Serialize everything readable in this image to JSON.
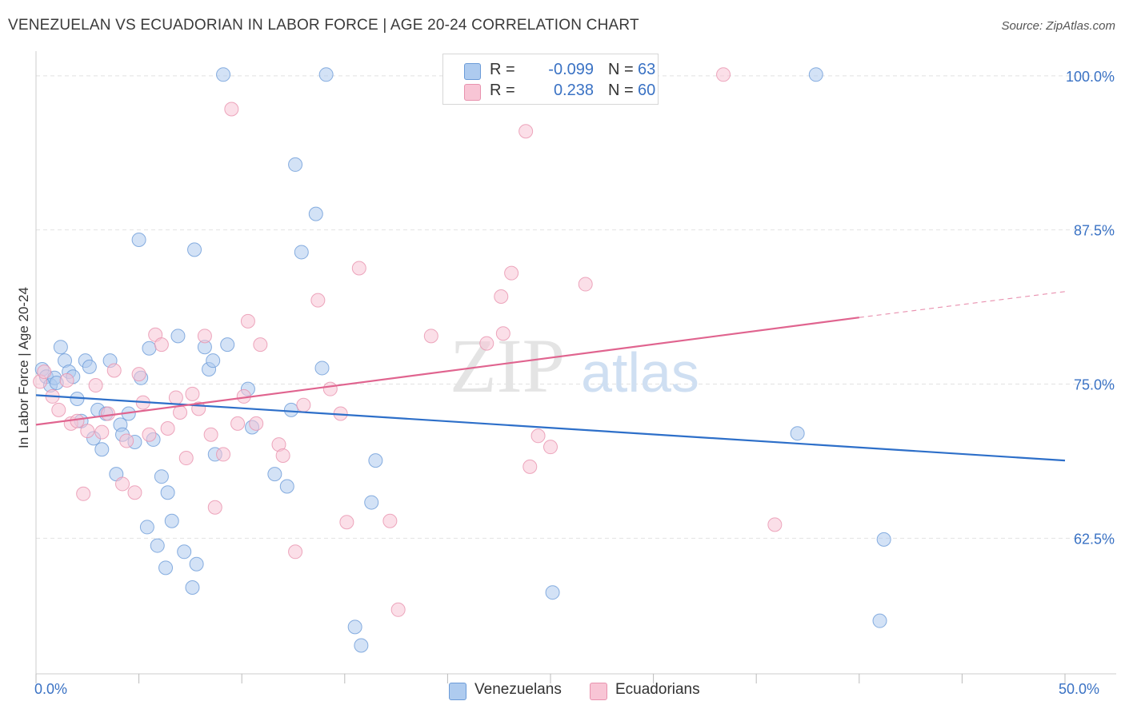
{
  "title": "VENEZUELAN VS ECUADORIAN IN LABOR FORCE | AGE 20-24 CORRELATION CHART",
  "source": "Source: ZipAtlas.com",
  "watermark": {
    "zip": "ZIP",
    "atlas": "atlas"
  },
  "legend": {
    "rows": [
      {
        "r_label": "R =",
        "r_value": "-0.099",
        "n_label": "N =",
        "n_value": "63",
        "color": "#aecbef",
        "border": "#6b9bd8"
      },
      {
        "r_label": "R =",
        "r_value": "0.238",
        "n_label": "N =",
        "n_value": "60",
        "color": "#f8c5d5",
        "border": "#e892ae"
      }
    ],
    "bottom": [
      {
        "label": "Venezuelans",
        "color": "#aecbef",
        "border": "#6b9bd8"
      },
      {
        "label": "Ecuadorians",
        "color": "#f8c5d5",
        "border": "#e892ae"
      }
    ]
  },
  "chart_data": {
    "type": "scatter",
    "title": "VENEZUELAN VS ECUADORIAN IN LABOR FORCE | AGE 20-24 CORRELATION CHART",
    "xlabel": "",
    "ylabel": "In Labor Force | Age 20-24",
    "xlim": [
      0,
      50
    ],
    "ylim": [
      51.5,
      102
    ],
    "x_tick_labels": [
      "0.0%",
      "50.0%"
    ],
    "y_ticks": [
      62.5,
      75.0,
      87.5,
      100.0
    ],
    "y_tick_labels": [
      "62.5%",
      "75.0%",
      "87.5%",
      "100.0%"
    ],
    "grid": "horizontal dashed",
    "legend_position": "top-center",
    "series": [
      {
        "name": "Venezuelans",
        "color": "#6b9bd8",
        "fill": "#aecbef",
        "trend": {
          "x": [
            0,
            50
          ],
          "y": [
            74.1,
            68.8
          ],
          "color": "#2d6fc9"
        },
        "points": [
          [
            0.3,
            76.2
          ],
          [
            0.5,
            75.6
          ],
          [
            0.7,
            74.9
          ],
          [
            0.9,
            75.5
          ],
          [
            1.2,
            78.0
          ],
          [
            1.4,
            76.9
          ],
          [
            1.6,
            76.0
          ],
          [
            1.8,
            75.6
          ],
          [
            2.0,
            73.8
          ],
          [
            2.2,
            72.0
          ],
          [
            2.4,
            76.9
          ],
          [
            2.6,
            76.4
          ],
          [
            2.8,
            70.6
          ],
          [
            3.0,
            72.9
          ],
          [
            3.2,
            69.7
          ],
          [
            3.4,
            72.6
          ],
          [
            3.6,
            76.9
          ],
          [
            3.9,
            67.7
          ],
          [
            4.1,
            71.7
          ],
          [
            4.2,
            70.9
          ],
          [
            4.5,
            72.6
          ],
          [
            4.8,
            70.3
          ],
          [
            5.0,
            86.7
          ],
          [
            5.1,
            75.5
          ],
          [
            5.4,
            63.4
          ],
          [
            5.5,
            77.9
          ],
          [
            5.7,
            70.5
          ],
          [
            5.9,
            61.9
          ],
          [
            6.1,
            67.5
          ],
          [
            6.3,
            60.1
          ],
          [
            6.4,
            66.2
          ],
          [
            6.6,
            63.9
          ],
          [
            6.9,
            78.9
          ],
          [
            7.2,
            61.4
          ],
          [
            7.6,
            58.5
          ],
          [
            7.7,
            85.9
          ],
          [
            7.8,
            60.4
          ],
          [
            8.2,
            78.0
          ],
          [
            8.4,
            76.2
          ],
          [
            8.6,
            76.9
          ],
          [
            8.7,
            69.3
          ],
          [
            9.1,
            100.1
          ],
          [
            9.3,
            78.2
          ],
          [
            10.3,
            74.6
          ],
          [
            10.5,
            71.5
          ],
          [
            11.6,
            67.7
          ],
          [
            12.2,
            66.7
          ],
          [
            12.4,
            72.9
          ],
          [
            12.6,
            92.8
          ],
          [
            12.9,
            85.7
          ],
          [
            13.6,
            88.8
          ],
          [
            13.9,
            76.3
          ],
          [
            14.1,
            100.1
          ],
          [
            15.5,
            55.3
          ],
          [
            15.8,
            53.8
          ],
          [
            16.3,
            65.4
          ],
          [
            16.5,
            68.8
          ],
          [
            25.1,
            58.1
          ],
          [
            37.0,
            71.0
          ],
          [
            37.9,
            100.1
          ],
          [
            41.2,
            62.4
          ],
          [
            41.0,
            55.8
          ],
          [
            1.0,
            75.1
          ]
        ]
      },
      {
        "name": "Ecuadorians",
        "color": "#e892ae",
        "fill": "#f8c5d5",
        "trend": {
          "x": [
            0,
            40
          ],
          "y": [
            71.7,
            80.4
          ],
          "dashed_to": [
            50,
            82.5
          ],
          "color": "#e0648f"
        },
        "points": [
          [
            0.2,
            75.2
          ],
          [
            0.4,
            76.0
          ],
          [
            0.8,
            74.0
          ],
          [
            1.1,
            72.9
          ],
          [
            1.5,
            75.3
          ],
          [
            1.7,
            71.8
          ],
          [
            2.0,
            72.0
          ],
          [
            2.3,
            66.1
          ],
          [
            2.5,
            71.2
          ],
          [
            2.9,
            74.9
          ],
          [
            3.2,
            71.1
          ],
          [
            3.5,
            72.6
          ],
          [
            3.8,
            76.1
          ],
          [
            4.2,
            66.9
          ],
          [
            4.4,
            70.4
          ],
          [
            4.8,
            66.2
          ],
          [
            5.0,
            75.8
          ],
          [
            5.2,
            73.5
          ],
          [
            5.5,
            70.9
          ],
          [
            5.8,
            79.0
          ],
          [
            6.1,
            78.2
          ],
          [
            6.4,
            71.4
          ],
          [
            6.8,
            73.9
          ],
          [
            7.0,
            72.7
          ],
          [
            7.3,
            69.0
          ],
          [
            7.6,
            74.2
          ],
          [
            7.9,
            73.0
          ],
          [
            8.2,
            78.9
          ],
          [
            8.5,
            70.9
          ],
          [
            8.7,
            65.0
          ],
          [
            9.1,
            69.3
          ],
          [
            9.5,
            97.3
          ],
          [
            9.8,
            71.8
          ],
          [
            10.1,
            74.0
          ],
          [
            10.3,
            80.1
          ],
          [
            10.7,
            71.8
          ],
          [
            10.9,
            78.2
          ],
          [
            11.8,
            70.1
          ],
          [
            12.0,
            69.2
          ],
          [
            12.6,
            61.4
          ],
          [
            13.0,
            73.3
          ],
          [
            13.7,
            81.8
          ],
          [
            14.3,
            74.6
          ],
          [
            14.8,
            72.6
          ],
          [
            15.1,
            63.8
          ],
          [
            15.7,
            84.4
          ],
          [
            17.2,
            63.9
          ],
          [
            17.6,
            56.7
          ],
          [
            19.2,
            78.9
          ],
          [
            21.9,
            78.3
          ],
          [
            22.6,
            82.1
          ],
          [
            22.7,
            79.1
          ],
          [
            23.1,
            84.0
          ],
          [
            23.8,
            95.5
          ],
          [
            24.0,
            68.3
          ],
          [
            24.4,
            70.8
          ],
          [
            25.0,
            69.9
          ],
          [
            26.7,
            83.1
          ],
          [
            33.4,
            100.1
          ],
          [
            35.9,
            63.6
          ]
        ]
      }
    ]
  }
}
